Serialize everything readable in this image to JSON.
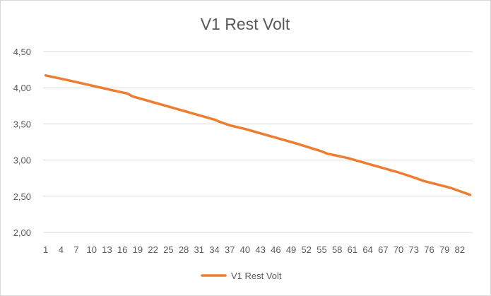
{
  "chart_data": {
    "type": "line",
    "title": "V1 Rest Volt",
    "xlabel": "",
    "ylabel": "",
    "x_start": 1,
    "x_end": 84,
    "x_tick_labels": [
      "1",
      "4",
      "7",
      "10",
      "13",
      "16",
      "19",
      "22",
      "25",
      "28",
      "31",
      "34",
      "37",
      "40",
      "43",
      "46",
      "49",
      "52",
      "55",
      "58",
      "61",
      "64",
      "67",
      "70",
      "73",
      "76",
      "79",
      "82"
    ],
    "y_tick_labels": [
      "2,00",
      "2,50",
      "3,00",
      "3,50",
      "4,00",
      "4,50"
    ],
    "ylim": [
      2.0,
      4.5
    ],
    "grid": true,
    "legend_position": "bottom",
    "series": [
      {
        "name": "V1 Rest Volt",
        "color": "#ed7d31",
        "points": [
          [
            1,
            4.17
          ],
          [
            5,
            4.11
          ],
          [
            10,
            4.03
          ],
          [
            15,
            3.95
          ],
          [
            17,
            3.92
          ],
          [
            18,
            3.88
          ],
          [
            20,
            3.84
          ],
          [
            25,
            3.74
          ],
          [
            30,
            3.64
          ],
          [
            34,
            3.56
          ],
          [
            35,
            3.53
          ],
          [
            37,
            3.48
          ],
          [
            40,
            3.43
          ],
          [
            45,
            3.33
          ],
          [
            50,
            3.23
          ],
          [
            55,
            3.12
          ],
          [
            56,
            3.09
          ],
          [
            60,
            3.03
          ],
          [
            65,
            2.93
          ],
          [
            70,
            2.83
          ],
          [
            73,
            2.76
          ],
          [
            75,
            2.71
          ],
          [
            80,
            2.62
          ],
          [
            84,
            2.52
          ]
        ]
      }
    ]
  }
}
